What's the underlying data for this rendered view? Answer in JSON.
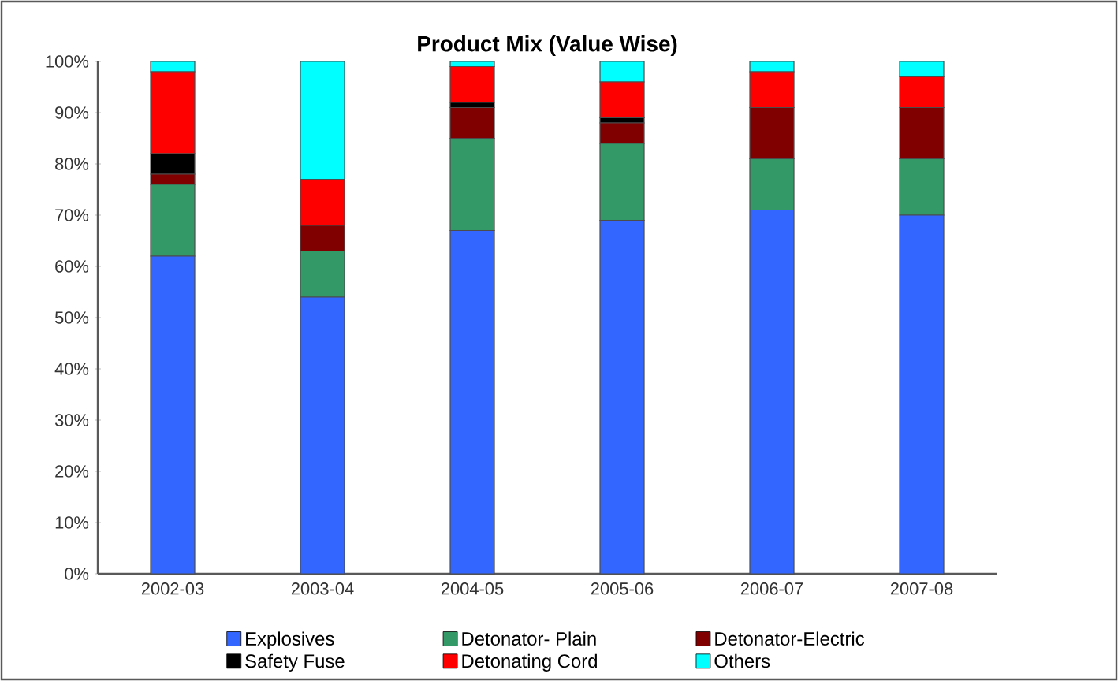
{
  "chart_data": {
    "type": "bar",
    "stacked": true,
    "title": "Product Mix (Value Wise)",
    "categories": [
      "2002-03",
      "2003-04",
      "2004-05",
      "2005-06",
      "2006-07",
      "2007-08"
    ],
    "series": [
      {
        "name": "Explosives",
        "color": "#3366ff",
        "values": [
          62,
          54,
          67,
          69,
          71,
          70
        ]
      },
      {
        "name": "Detonator- Plain",
        "color": "#339966",
        "values": [
          14,
          9,
          18,
          15,
          10,
          11
        ]
      },
      {
        "name": "Detonator-Electric",
        "color": "#800000",
        "values": [
          2,
          5,
          6,
          4,
          10,
          10
        ]
      },
      {
        "name": "Safety Fuse",
        "color": "#000000",
        "values": [
          4,
          0,
          1,
          1,
          0,
          0
        ]
      },
      {
        "name": "Detonating Cord",
        "color": "#ff0000",
        "values": [
          16,
          9,
          7,
          7,
          7,
          6
        ]
      },
      {
        "name": "Others",
        "color": "#00ffff",
        "values": [
          2,
          23,
          1,
          4,
          2,
          3
        ]
      }
    ],
    "ylim": [
      0,
      100
    ],
    "yticks": [
      {
        "value": 0,
        "label": "0%"
      },
      {
        "value": 10,
        "label": "10%"
      },
      {
        "value": 20,
        "label": "20%"
      },
      {
        "value": 30,
        "label": "30%"
      },
      {
        "value": 40,
        "label": "40%"
      },
      {
        "value": 50,
        "label": "50%"
      },
      {
        "value": 60,
        "label": "60%"
      },
      {
        "value": 70,
        "label": "70%"
      },
      {
        "value": 80,
        "label": "80%"
      },
      {
        "value": 90,
        "label": "90%"
      },
      {
        "value": 100,
        "label": "100%"
      }
    ],
    "legend": "bottom",
    "grid": false
  }
}
